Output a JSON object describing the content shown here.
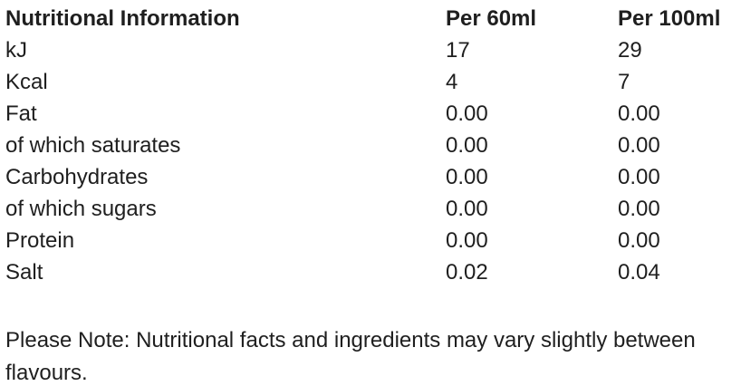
{
  "table": {
    "header": {
      "name": "Nutritional Information",
      "per60": "Per 60ml",
      "per100": "Per 100ml"
    },
    "rows": [
      {
        "label": "kJ",
        "per60": "17",
        "per100": "29"
      },
      {
        "label": "Kcal",
        "per60": "4",
        "per100": "7"
      },
      {
        "label": "Fat",
        "per60": "0.00",
        "per100": "0.00"
      },
      {
        "label": "of which saturates",
        "per60": "0.00",
        "per100": "0.00"
      },
      {
        "label": "Carbohydrates",
        "per60": "0.00",
        "per100": "0.00"
      },
      {
        "label": "of which sugars",
        "per60": "0.00",
        "per100": "0.00"
      },
      {
        "label": "Protein",
        "per60": "0.00",
        "per100": "0.00"
      },
      {
        "label": "Salt",
        "per60": "0.02",
        "per100": "0.04"
      }
    ]
  },
  "note": "Please Note: Nutritional facts and ingredients may vary slightly between flavours.",
  "colors": {
    "text": "#1f1f1f",
    "background": "#ffffff"
  }
}
